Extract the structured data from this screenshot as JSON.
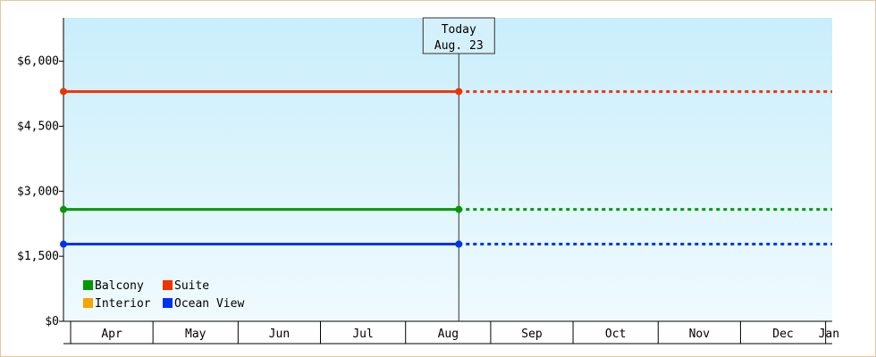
{
  "chart_data": {
    "type": "line",
    "title": "",
    "xlabel": "",
    "ylabel": "",
    "ylim": [
      0,
      7000
    ],
    "y_ticks": [
      {
        "value": 0,
        "label": "$0"
      },
      {
        "value": 1500,
        "label": "$1,500"
      },
      {
        "value": 3000,
        "label": "$3,000"
      },
      {
        "value": 4500,
        "label": "$4,500"
      },
      {
        "value": 6000,
        "label": "$6,000"
      }
    ],
    "x_range": [
      "2024-04-01",
      "2025-01-06"
    ],
    "months": [
      {
        "label": "Apr",
        "start": "2024-04-01"
      },
      {
        "label": "May",
        "start": "2024-05-01"
      },
      {
        "label": "Jun",
        "start": "2024-06-01"
      },
      {
        "label": "Jul",
        "start": "2024-07-01"
      },
      {
        "label": "Aug",
        "start": "2024-08-01"
      },
      {
        "label": "Sep",
        "start": "2024-09-01"
      },
      {
        "label": "Oct",
        "start": "2024-10-01"
      },
      {
        "label": "Nov",
        "start": "2024-11-01"
      },
      {
        "label": "Dec",
        "start": "2024-12-01"
      },
      {
        "label": "Jan",
        "start": "2025-01-01"
      }
    ],
    "today": {
      "date": "2024-08-23",
      "label_line1": "Today",
      "label_line2": "Aug. 23"
    },
    "series": [
      {
        "name": "Suite",
        "color": "#ee3300",
        "values": [
          5300,
          5300
        ],
        "x": [
          "2024-04-01",
          "2024-08-23"
        ]
      },
      {
        "name": "Balcony",
        "color": "#009900",
        "values": [
          2580,
          2580
        ],
        "x": [
          "2024-04-01",
          "2024-08-23"
        ]
      },
      {
        "name": "Interior",
        "color": "#f5a500",
        "values": [],
        "x": []
      },
      {
        "name": "Ocean View",
        "color": "#0033ee",
        "values": [
          1780,
          1780
        ],
        "x": [
          "2024-04-01",
          "2024-08-23"
        ]
      }
    ],
    "legend": [
      {
        "name": "Balcony",
        "color": "#009900"
      },
      {
        "name": "Suite",
        "color": "#ee3300"
      },
      {
        "name": "Interior",
        "color": "#f5a500"
      },
      {
        "name": "Ocean View",
        "color": "#0033ee"
      }
    ],
    "legend_position": "bottom-left",
    "grid": false
  }
}
